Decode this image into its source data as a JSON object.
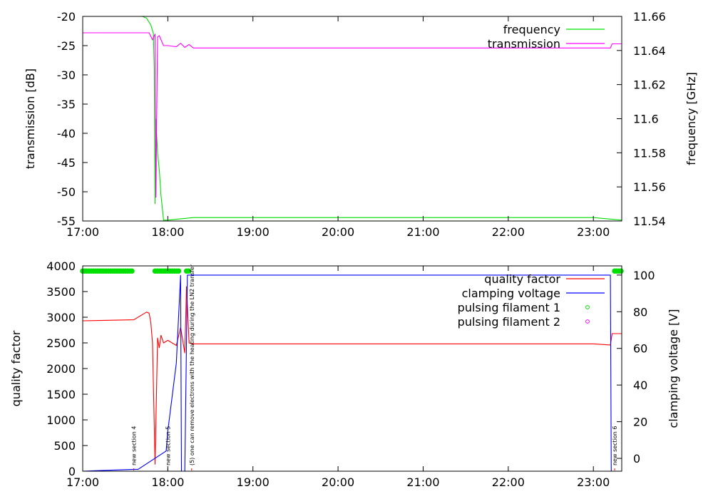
{
  "chart_data": [
    {
      "type": "line",
      "x_label": "",
      "y_label": "transmission [dB]",
      "y2_label": "frequency [GHz]",
      "x_ticks": [
        "17:00",
        "18:00",
        "19:00",
        "20:00",
        "21:00",
        "22:00",
        "23:00"
      ],
      "y_ticks": [
        "-20",
        "-25",
        "-30",
        "-35",
        "-40",
        "-45",
        "-50",
        "-55"
      ],
      "y2_ticks": [
        "11.66",
        "11.64",
        "11.62",
        "11.6",
        "11.58",
        "11.56",
        "11.54"
      ],
      "xlim_hours": [
        17.0,
        23.3333
      ],
      "ylim": [
        -55,
        -20
      ],
      "y2lim": [
        11.54,
        11.66
      ],
      "legend_position": "top-right",
      "series": [
        {
          "name": "frequency",
          "axis": "y2",
          "color": "#00e000",
          "x": [
            17.0,
            17.7,
            17.75,
            17.8,
            17.83,
            17.84,
            17.85,
            17.86,
            17.88,
            17.9,
            17.92,
            17.95,
            18.0,
            18.1,
            18.3,
            19.0,
            20.0,
            21.0,
            22.0,
            23.0,
            23.3333
          ],
          "y": [
            11.6604,
            11.6604,
            11.659,
            11.655,
            11.65,
            11.63,
            11.55,
            11.6,
            11.58,
            11.57,
            11.555,
            11.5405,
            11.5405,
            11.541,
            11.542,
            11.542,
            11.542,
            11.542,
            11.542,
            11.542,
            11.5405
          ]
        },
        {
          "name": "transmission",
          "axis": "y",
          "color": "#ff00ff",
          "x": [
            17.0,
            17.78,
            17.82,
            17.85,
            17.86,
            17.87,
            17.88,
            17.9,
            17.95,
            18.0,
            18.1,
            18.15,
            18.2,
            18.25,
            18.3,
            19.0,
            20.0,
            21.0,
            22.0,
            23.0,
            23.2,
            23.22,
            23.3333
          ],
          "y": [
            -22.8,
            -22.8,
            -24.0,
            -23.0,
            -51.0,
            -36.0,
            -23.5,
            -23.3,
            -25.0,
            -25.0,
            -25.2,
            -24.6,
            -25.3,
            -24.8,
            -25.4,
            -25.4,
            -25.4,
            -25.4,
            -25.4,
            -25.4,
            -25.4,
            -24.7,
            -24.7
          ]
        }
      ]
    },
    {
      "type": "line",
      "x_label": "",
      "y_label": "quality factor",
      "y2_label": "clamping voltage [V]",
      "x_ticks": [
        "17:00",
        "18:00",
        "19:00",
        "20:00",
        "21:00",
        "22:00",
        "23:00"
      ],
      "y_ticks": [
        "4000",
        "3500",
        "3000",
        "2500",
        "2000",
        "1500",
        "1000",
        "500",
        "0"
      ],
      "y2_ticks": [
        "100",
        "80",
        "60",
        "40",
        "20",
        "0"
      ],
      "xlim_hours": [
        17.0,
        23.3333
      ],
      "ylim": [
        0,
        4000
      ],
      "y2lim": [
        -7,
        105
      ],
      "legend_position": "top-right",
      "series": [
        {
          "name": "quality factor",
          "axis": "y",
          "color": "#ff0000",
          "x": [
            17.0,
            17.3,
            17.6,
            17.75,
            17.78,
            17.8,
            17.82,
            17.85,
            17.88,
            17.9,
            17.92,
            17.95,
            18.0,
            18.05,
            18.1,
            18.15,
            18.2,
            18.22,
            18.25,
            18.3,
            19.0,
            20.0,
            21.0,
            22.0,
            23.0,
            23.2,
            23.22,
            23.3333
          ],
          "y": [
            2930,
            2940,
            2950,
            3100,
            3080,
            2900,
            2500,
            130,
            2600,
            2400,
            2650,
            2500,
            2550,
            2500,
            2450,
            2800,
            2300,
            3600,
            2500,
            2480,
            2480,
            2480,
            2480,
            2480,
            2480,
            2460,
            2680,
            2680
          ]
        },
        {
          "name": "clamping voltage",
          "axis": "y2",
          "color": "#0000ff",
          "x": [
            17.0,
            17.6,
            17.65,
            17.98,
            18.0,
            18.1,
            18.15,
            18.16,
            18.2,
            18.23,
            23.2,
            23.21,
            23.3333
          ],
          "y": [
            -9,
            -6,
            -6,
            4,
            15,
            52,
            100,
            -8,
            -8,
            100,
            100,
            -8,
            -8
          ]
        },
        {
          "name": "pulsing filament 1",
          "axis": "y",
          "color": "#00e000",
          "marker": "circle",
          "intervals": [
            [
              17.0,
              17.6
            ],
            [
              17.85,
              18.15
            ],
            [
              18.22,
              18.25
            ],
            [
              23.25,
              23.3333
            ]
          ],
          "y": 3900
        },
        {
          "name": "pulsing filament 2",
          "axis": "y",
          "color": "#ff00ff",
          "marker": "circle",
          "intervals": []
        }
      ],
      "annotations": [
        {
          "x": 17.6,
          "text": "new section 4"
        },
        {
          "x": 18.0,
          "text": "new section 5"
        },
        {
          "x": 18.28,
          "text": "(5) one can remove electrons with the heating during the LN2 transfer"
        },
        {
          "x": 23.25,
          "text": "new section 6"
        }
      ]
    }
  ]
}
